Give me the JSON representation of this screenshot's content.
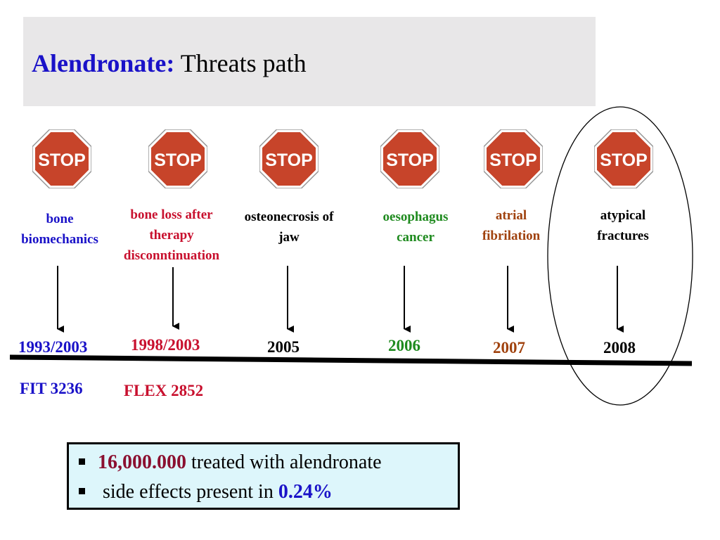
{
  "title": {
    "highlight": "Alendronate:",
    "rest": "Threats path"
  },
  "colors": {
    "blue": "#1a12c8",
    "red": "#c8102e",
    "black": "#000000",
    "green": "#1e8a1e",
    "brown": "#a0420e",
    "stop_red": "#c7442a",
    "title_bg": "#e8e7e8",
    "info_bg": "#ddf6fb"
  },
  "stop_sign_text": "STOP",
  "milestones": [
    {
      "label_lines": [
        "bone",
        "biomechanics"
      ],
      "year": "1993/2003",
      "study": "FIT 3236",
      "color": "blue"
    },
    {
      "label_lines": [
        "bone loss after",
        "therapy",
        "disconntinuation"
      ],
      "year": "1998/2003",
      "study": "FLEX 2852",
      "color": "red"
    },
    {
      "label_lines": [
        "osteonecrosis of",
        "jaw"
      ],
      "year": "2005",
      "study": "",
      "color": "black"
    },
    {
      "label_lines": [
        "oesophagus",
        "cancer"
      ],
      "year": "2006",
      "study": "",
      "color": "green"
    },
    {
      "label_lines": [
        "atrial",
        "fibrilation"
      ],
      "year": "2007",
      "study": "",
      "color": "brown"
    },
    {
      "label_lines": [
        "atypical",
        "fractures"
      ],
      "year": "2008",
      "study": "",
      "color": "black",
      "highlighted": true
    }
  ],
  "summary": {
    "line1": {
      "number": "16,000.000",
      "text": " treated with alendronate"
    },
    "line2": {
      "text": " side effects present in ",
      "number": "0.24%"
    }
  }
}
